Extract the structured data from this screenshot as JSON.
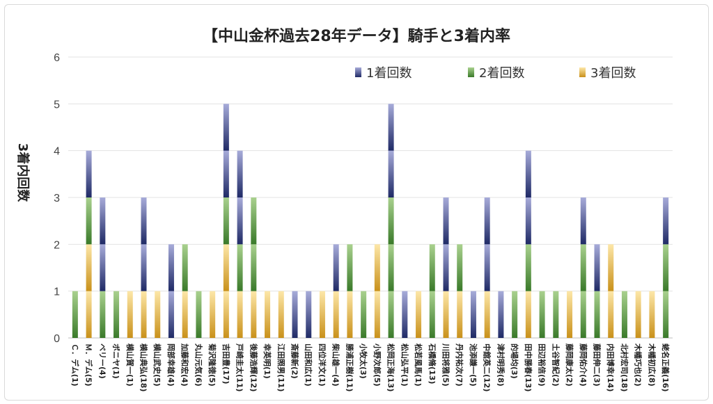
{
  "chart_data": {
    "type": "bar",
    "stacked": true,
    "title": "【中山金杯過去28年データ】騎手と3着内率",
    "xlabel": "",
    "ylabel": "3着内回数",
    "ylim": [
      0,
      6
    ],
    "yticks": [
      "0",
      "1",
      "2",
      "3",
      "4",
      "5",
      "6"
    ],
    "grid": true,
    "legend_position": "top-right",
    "categories": [
      "Ｃ．デム(1)",
      "Ｍ．デム(5)",
      "ベリー(4)",
      "ボニヤ(1)",
      "横山賀一(1)",
      "横山典弘(18)",
      "横山武史(5)",
      "岡部幸雄(4)",
      "加藤和宏(4)",
      "丸山元気(6)",
      "菊沢隆徳(5)",
      "吉田豊(17)",
      "戸崎圭太(11)",
      "後藤浩輝(12)",
      "幸英明(1)",
      "江田照男(11)",
      "斎藤新(2)",
      "山田和広(1)",
      "四位洋文(1)",
      "柴山雄一(4)",
      "勝浦正樹(11)",
      "小牧太(3)",
      "小野次郎(5)",
      "松岡正海(13)",
      "松山弘平(1)",
      "松若風馬(1)",
      "石橋脩(13)",
      "川田将雅(5)",
      "丹内祐次(7)",
      "池添謙一(5)",
      "中舘英二(12)",
      "津村明秀(8)",
      "的場均(3)",
      "田中勝春(13)",
      "田辺裕信(9)",
      "土谷智紀(2)",
      "藤岡康太(2)",
      "藤岡佑介(4)",
      "藤田伸二(3)",
      "内田博幸(14)",
      "北村宏司(18)",
      "木幡巧也(2)",
      "木幡初広(8)",
      "蛯名正義(16)"
    ],
    "series": [
      {
        "name": "1着回数",
        "color_top": "#a7abd9",
        "color_bottom": "#1f2a66",
        "values": [
          0,
          1,
          2,
          0,
          0,
          2,
          0,
          2,
          0,
          0,
          0,
          2,
          2,
          0,
          0,
          0,
          1,
          1,
          0,
          1,
          0,
          0,
          0,
          2,
          1,
          0,
          0,
          2,
          0,
          1,
          2,
          1,
          0,
          2,
          0,
          0,
          0,
          1,
          1,
          0,
          0,
          0,
          0,
          1
        ]
      },
      {
        "name": "2着回数",
        "color_top": "#a9d18e",
        "color_bottom": "#3a7a2a",
        "values": [
          1,
          1,
          1,
          1,
          0,
          0,
          0,
          0,
          1,
          1,
          0,
          1,
          1,
          2,
          0,
          0,
          0,
          0,
          0,
          0,
          1,
          1,
          0,
          3,
          0,
          0,
          2,
          0,
          1,
          0,
          0,
          0,
          1,
          1,
          1,
          1,
          0,
          2,
          1,
          0,
          1,
          0,
          0,
          2
        ]
      },
      {
        "name": "3着回数",
        "color_top": "#fde7a8",
        "color_bottom": "#c9911a",
        "values": [
          0,
          2,
          0,
          0,
          1,
          1,
          1,
          0,
          1,
          0,
          1,
          2,
          1,
          1,
          1,
          1,
          0,
          0,
          1,
          1,
          1,
          0,
          2,
          0,
          0,
          1,
          0,
          1,
          1,
          0,
          1,
          0,
          0,
          1,
          0,
          0,
          1,
          0,
          0,
          2,
          0,
          1,
          1,
          0
        ]
      }
    ]
  }
}
